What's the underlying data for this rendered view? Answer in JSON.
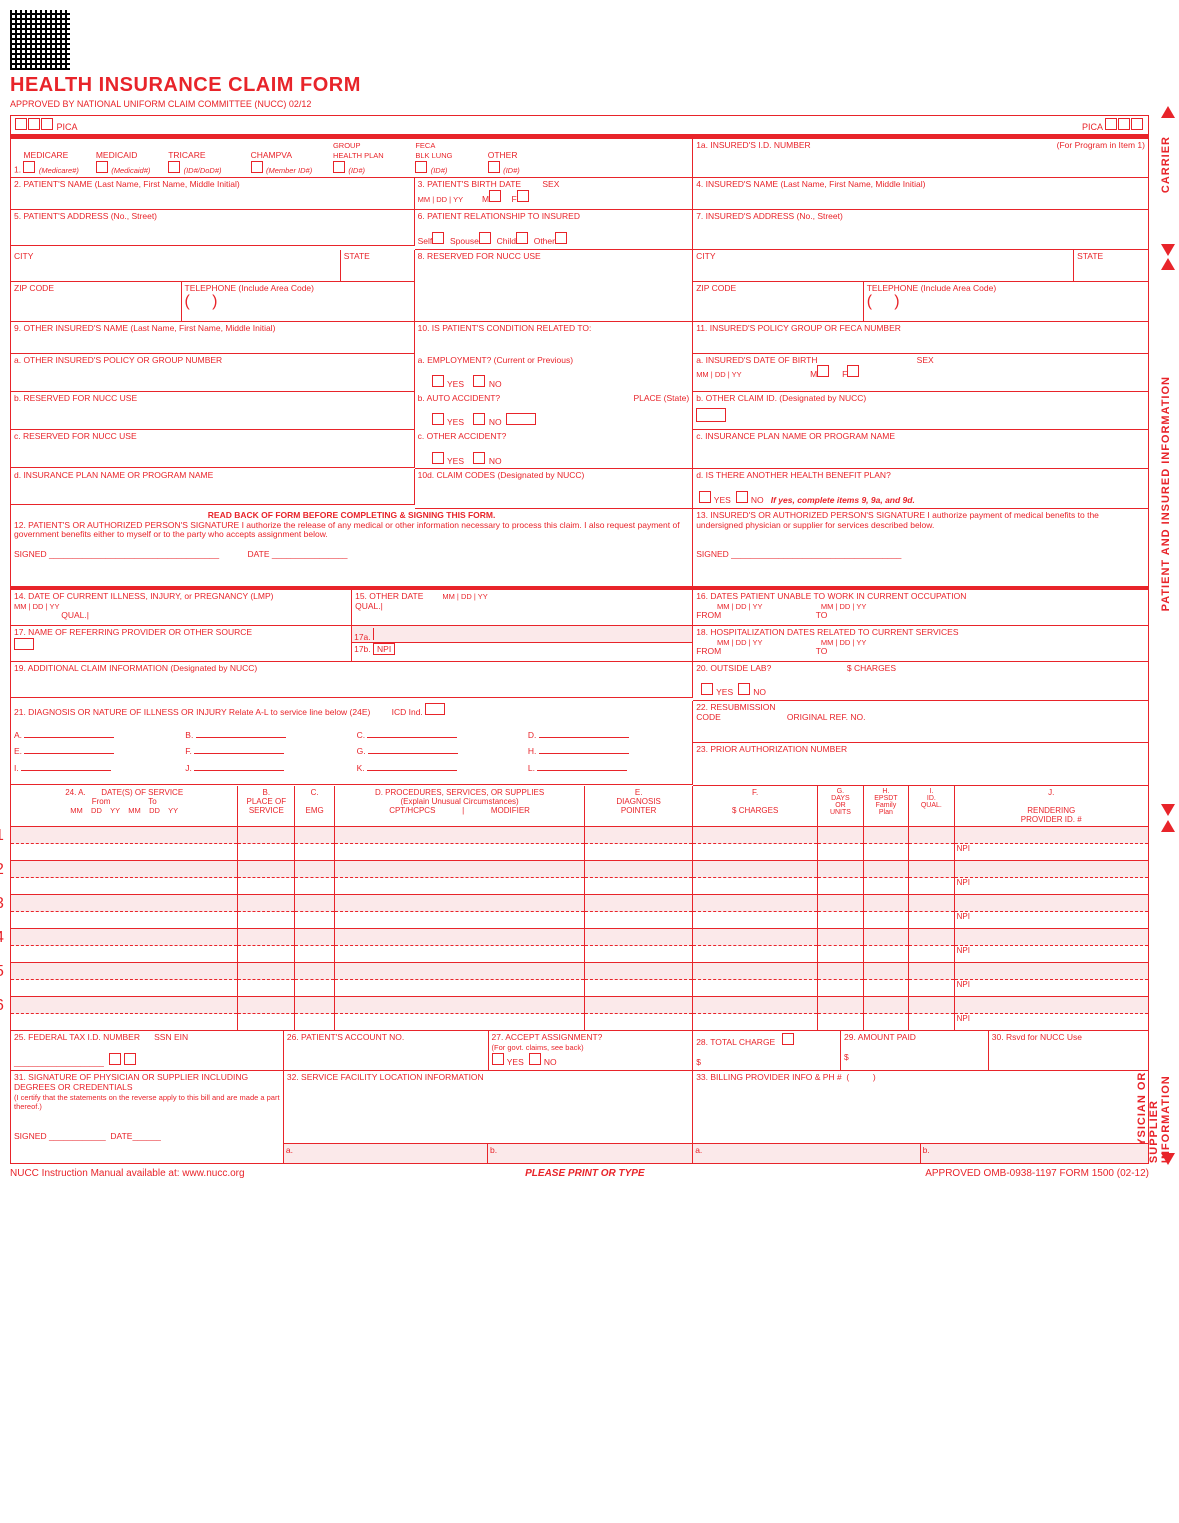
{
  "colors": {
    "primary": "#e8242a",
    "pink": "#fbe9ea",
    "black": "#000000",
    "white": "#ffffff"
  },
  "header": {
    "title": "HEALTH INSURANCE CLAIM FORM",
    "subtitle": "APPROVED BY NATIONAL UNIFORM CLAIM COMMITTEE (NUCC) 02/12",
    "pica": "PICA"
  },
  "side_labels": {
    "carrier": "CARRIER",
    "patient_insured": "PATIENT AND INSURED INFORMATION",
    "physician": "PHYSICIAN OR SUPPLIER INFORMATION"
  },
  "box1": {
    "num": "1.",
    "medicare": "MEDICARE",
    "medicare_sub": "(Medicare#)",
    "medicaid": "MEDICAID",
    "medicaid_sub": "(Medicaid#)",
    "tricare": "TRICARE",
    "tricare_sub": "(ID#/DoD#)",
    "champva": "CHAMPVA",
    "champva_sub": "(Member ID#)",
    "group": "GROUP\nHEALTH PLAN",
    "group_sub": "(ID#)",
    "feca": "FECA\nBLK LUNG",
    "feca_sub": "(ID#)",
    "other": "OTHER",
    "other_sub": "(ID#)"
  },
  "box1a": {
    "label": "1a. INSURED'S I.D. NUMBER",
    "hint": "(For Program in Item 1)"
  },
  "box2": "2. PATIENT'S NAME (Last Name, First Name, Middle Initial)",
  "box3": {
    "label": "3. PATIENT'S BIRTH DATE",
    "sex": "SEX",
    "m": "M",
    "f": "F"
  },
  "box4": "4. INSURED'S NAME (Last Name, First Name, Middle Initial)",
  "box5": "5. PATIENT'S ADDRESS (No., Street)",
  "box6": {
    "label": "6. PATIENT RELATIONSHIP TO INSURED",
    "self": "Self",
    "spouse": "Spouse",
    "child": "Child",
    "other": "Other"
  },
  "box7": "7. INSURED'S ADDRESS (No., Street)",
  "city": "CITY",
  "state": "STATE",
  "zip": "ZIP CODE",
  "tel": "TELEPHONE (Include Area Code)",
  "box8": "8. RESERVED FOR NUCC USE",
  "box9": "9. OTHER INSURED'S NAME (Last Name, First Name, Middle Initial)",
  "box9a": "a. OTHER INSURED'S POLICY OR GROUP NUMBER",
  "box9b": "b. RESERVED FOR NUCC USE",
  "box9c": "c. RESERVED FOR NUCC USE",
  "box9d": "d. INSURANCE PLAN NAME OR PROGRAM NAME",
  "box10": "10. IS PATIENT'S CONDITION RELATED TO:",
  "box10a": "a. EMPLOYMENT? (Current or Previous)",
  "box10b": "b. AUTO ACCIDENT?",
  "box10b_place": "PLACE (State)",
  "box10c": "c. OTHER ACCIDENT?",
  "box10d": "10d. CLAIM CODES (Designated by NUCC)",
  "yes": "YES",
  "no": "NO",
  "box11": "11. INSURED'S POLICY GROUP OR FECA NUMBER",
  "box11a": "a. INSURED'S DATE OF BIRTH",
  "box11b": "b. OTHER CLAIM ID. (Designated by NUCC)",
  "box11c": "c. INSURANCE PLAN NAME OR PROGRAM NAME",
  "box11d": {
    "label": "d. IS THERE ANOTHER HEALTH BENEFIT PLAN?",
    "hint": "If yes, complete items 9, 9a, and 9d."
  },
  "box12": {
    "pre": "READ BACK OF FORM BEFORE COMPLETING & SIGNING THIS FORM.",
    "label": "12. PATIENT'S OR AUTHORIZED PERSON'S SIGNATURE  I authorize the release of any medical or other information necessary to process this claim. I also request payment of government benefits either to myself or to the party who accepts assignment below.",
    "signed": "SIGNED",
    "date": "DATE"
  },
  "box13": {
    "label": "13. INSURED'S OR AUTHORIZED PERSON'S SIGNATURE I authorize payment of medical benefits to the undersigned physician or supplier for services described below.",
    "signed": "SIGNED"
  },
  "box14": {
    "label": "14. DATE OF CURRENT ILLNESS, INJURY, or PREGNANCY (LMP)",
    "qual": "QUAL."
  },
  "box15": {
    "label": "15. OTHER DATE",
    "qual": "QUAL."
  },
  "box16": {
    "label": "16. DATES PATIENT UNABLE TO WORK IN CURRENT OCCUPATION",
    "from": "FROM",
    "to": "TO"
  },
  "box17": "17. NAME OF REFERRING PROVIDER OR OTHER SOURCE",
  "box17a": "17a.",
  "box17b": "17b.",
  "npi": "NPI",
  "box18": {
    "label": "18. HOSPITALIZATION DATES RELATED TO CURRENT SERVICES",
    "from": "FROM",
    "to": "TO"
  },
  "box19": "19. ADDITIONAL CLAIM INFORMATION (Designated by NUCC)",
  "box20": {
    "label": "20. OUTSIDE LAB?",
    "charges": "$ CHARGES"
  },
  "box21": {
    "label": "21. DIAGNOSIS OR NATURE OF ILLNESS OR INJURY  Relate A-L to service line below (24E)",
    "icd": "ICD Ind.",
    "letters": [
      "A.",
      "B.",
      "C.",
      "D.",
      "E.",
      "F.",
      "G.",
      "H.",
      "I.",
      "J.",
      "K.",
      "L."
    ]
  },
  "box22": {
    "label": "22. RESUBMISSION",
    "code": "CODE",
    "orig": "ORIGINAL REF. NO."
  },
  "box23": "23. PRIOR AUTHORIZATION NUMBER",
  "box24": {
    "A": "24. A.       DATE(S) OF SERVICE",
    "from": "From",
    "to": "To",
    "B": "B.\nPLACE OF\nSERVICE",
    "C": "C.\n\nEMG",
    "D": "D. PROCEDURES, SERVICES, OR SUPPLIES",
    "D2": "(Explain Unusual Circumstances)",
    "D3": "CPT/HCPCS            |            MODIFIER",
    "E": "E.\nDIAGNOSIS\nPOINTER",
    "F": "F.\n\n$ CHARGES",
    "G": "G.\nDAYS\nOR\nUNITS",
    "H": "H.\nEPSDT\nFamily\nPlan",
    "I": "I.\nID.\nQUAL.",
    "J": "J.\n\nRENDERING\nPROVIDER ID. #",
    "mmddyy": "MM    DD    YY    MM    DD    YY"
  },
  "box25": {
    "label": "25. FEDERAL TAX I.D. NUMBER",
    "ssn": "SSN  EIN"
  },
  "box26": "26. PATIENT'S ACCOUNT NO.",
  "box27": {
    "label": "27. ACCEPT ASSIGNMENT?",
    "hint": "(For govt. claims, see back)"
  },
  "box28": "28. TOTAL CHARGE",
  "box29": "29. AMOUNT PAID",
  "box30": "30. Rsvd for NUCC Use",
  "box31": {
    "label": "31. SIGNATURE OF PHYSICIAN OR SUPPLIER INCLUDING DEGREES OR CREDENTIALS",
    "cert": "(I certify that the statements on the reverse apply to this bill and are made a part thereof.)",
    "signed": "SIGNED",
    "date": "DATE"
  },
  "box32": "32. SERVICE FACILITY LOCATION INFORMATION",
  "box33": {
    "label": "33. BILLING PROVIDER INFO & PH #",
    "paren": "(          )"
  },
  "ab": {
    "a": "a.",
    "b": "b."
  },
  "dollar": "$",
  "footer": {
    "left": "NUCC Instruction Manual available at: www.nucc.org",
    "center": "PLEASE PRINT OR TYPE",
    "right": "APPROVED OMB-0938-1197 FORM 1500 (02-12)"
  },
  "date_labels": {
    "mm": "MM",
    "dd": "DD",
    "yy": "YY"
  },
  "svc_rows": [
    1,
    2,
    3,
    4,
    5,
    6
  ]
}
